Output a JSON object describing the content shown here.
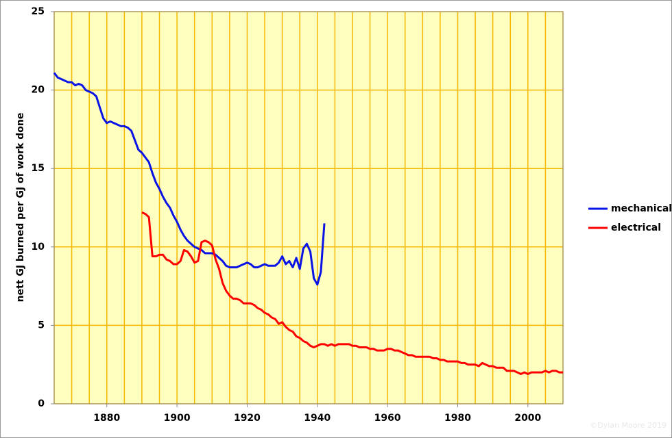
{
  "chart_data": {
    "type": "line",
    "ylabel": "nett GJ burned per GJ of work done",
    "watermark": "©Dylan Moore 2019",
    "xlim": [
      1865,
      2010
    ],
    "ylim": [
      0,
      25
    ],
    "xticks": [
      1880,
      1900,
      1920,
      1940,
      1960,
      1980,
      2000
    ],
    "xgrid": [
      1865,
      1870,
      1875,
      1880,
      1885,
      1890,
      1895,
      1900,
      1905,
      1910,
      1915,
      1920,
      1925,
      1930,
      1935,
      1940,
      1945,
      1950,
      1955,
      1960,
      1965,
      1970,
      1975,
      1980,
      1985,
      1990,
      1995,
      2000,
      2005,
      2010
    ],
    "yticks": [
      0,
      5,
      10,
      15,
      20,
      25
    ],
    "grid": true,
    "legend": "right",
    "series": [
      {
        "name": "mechanical",
        "color": "#0a14e6",
        "x": [
          1865,
          1866,
          1867,
          1868,
          1869,
          1870,
          1871,
          1872,
          1873,
          1874,
          1875,
          1876,
          1877,
          1878,
          1879,
          1880,
          1881,
          1882,
          1883,
          1884,
          1885,
          1886,
          1887,
          1888,
          1889,
          1890,
          1891,
          1892,
          1893,
          1894,
          1895,
          1896,
          1897,
          1898,
          1899,
          1900,
          1901,
          1902,
          1903,
          1904,
          1905,
          1906,
          1907,
          1908,
          1909,
          1910,
          1911,
          1912,
          1913,
          1914,
          1915,
          1916,
          1917,
          1918,
          1919,
          1920,
          1921,
          1922,
          1923,
          1924,
          1925,
          1926,
          1927,
          1928,
          1929,
          1930,
          1931,
          1932,
          1933,
          1934,
          1935,
          1936,
          1937,
          1938,
          1939,
          1940,
          1941,
          1942
        ],
        "values": [
          21.1,
          20.8,
          20.7,
          20.6,
          20.5,
          20.5,
          20.3,
          20.4,
          20.3,
          20.0,
          19.9,
          19.8,
          19.6,
          18.9,
          18.2,
          17.9,
          18.0,
          17.9,
          17.8,
          17.7,
          17.7,
          17.6,
          17.4,
          16.8,
          16.2,
          16.0,
          15.7,
          15.4,
          14.7,
          14.1,
          13.7,
          13.2,
          12.8,
          12.5,
          12.0,
          11.6,
          11.1,
          10.7,
          10.4,
          10.2,
          10.0,
          9.9,
          9.8,
          9.6,
          9.6,
          9.6,
          9.5,
          9.3,
          9.1,
          8.8,
          8.7,
          8.7,
          8.7,
          8.8,
          8.9,
          9.0,
          8.9,
          8.7,
          8.7,
          8.8,
          8.9,
          8.8,
          8.8,
          8.8,
          9.0,
          9.4,
          8.9,
          9.1,
          8.7,
          9.3,
          8.6,
          9.9,
          10.2,
          9.7,
          8.0,
          7.6,
          8.4,
          11.5
        ]
      },
      {
        "name": "electrical",
        "color": "#ff0000",
        "x": [
          1890,
          1891,
          1892,
          1893,
          1894,
          1895,
          1896,
          1897,
          1898,
          1899,
          1900,
          1901,
          1902,
          1903,
          1904,
          1905,
          1906,
          1907,
          1908,
          1909,
          1910,
          1911,
          1912,
          1913,
          1914,
          1915,
          1916,
          1917,
          1918,
          1919,
          1920,
          1921,
          1922,
          1923,
          1924,
          1925,
          1926,
          1927,
          1928,
          1929,
          1930,
          1931,
          1932,
          1933,
          1934,
          1935,
          1936,
          1937,
          1938,
          1939,
          1940,
          1941,
          1942,
          1943,
          1944,
          1945,
          1946,
          1947,
          1948,
          1949,
          1950,
          1951,
          1952,
          1953,
          1954,
          1955,
          1956,
          1957,
          1958,
          1959,
          1960,
          1961,
          1962,
          1963,
          1964,
          1965,
          1966,
          1967,
          1968,
          1969,
          1970,
          1971,
          1972,
          1973,
          1974,
          1975,
          1976,
          1977,
          1978,
          1979,
          1980,
          1981,
          1982,
          1983,
          1984,
          1985,
          1986,
          1987,
          1988,
          1989,
          1990,
          1991,
          1992,
          1993,
          1994,
          1995,
          1996,
          1997,
          1998,
          1999,
          2000,
          2001,
          2002,
          2003,
          2004,
          2005,
          2006,
          2007,
          2008,
          2009,
          2010
        ],
        "values": [
          12.2,
          12.1,
          11.9,
          9.4,
          9.4,
          9.5,
          9.5,
          9.2,
          9.1,
          8.9,
          8.9,
          9.1,
          9.8,
          9.7,
          9.4,
          9.0,
          9.1,
          10.3,
          10.4,
          10.3,
          10.1,
          9.2,
          8.6,
          7.7,
          7.2,
          6.9,
          6.7,
          6.7,
          6.6,
          6.4,
          6.4,
          6.4,
          6.3,
          6.1,
          6.0,
          5.8,
          5.7,
          5.5,
          5.4,
          5.1,
          5.2,
          4.9,
          4.7,
          4.6,
          4.3,
          4.2,
          4.0,
          3.9,
          3.7,
          3.6,
          3.7,
          3.8,
          3.8,
          3.7,
          3.8,
          3.7,
          3.8,
          3.8,
          3.8,
          3.8,
          3.7,
          3.7,
          3.6,
          3.6,
          3.6,
          3.5,
          3.5,
          3.4,
          3.4,
          3.4,
          3.5,
          3.5,
          3.4,
          3.4,
          3.3,
          3.2,
          3.1,
          3.1,
          3.0,
          3.0,
          3.0,
          3.0,
          3.0,
          2.9,
          2.9,
          2.8,
          2.8,
          2.7,
          2.7,
          2.7,
          2.7,
          2.6,
          2.6,
          2.5,
          2.5,
          2.5,
          2.4,
          2.6,
          2.5,
          2.4,
          2.4,
          2.3,
          2.3,
          2.3,
          2.1,
          2.1,
          2.1,
          2.0,
          1.9,
          2.0,
          1.9,
          2.0,
          2.0,
          2.0,
          2.0,
          2.1,
          2.0,
          2.1,
          2.1,
          2.0,
          2.0
        ]
      }
    ]
  }
}
